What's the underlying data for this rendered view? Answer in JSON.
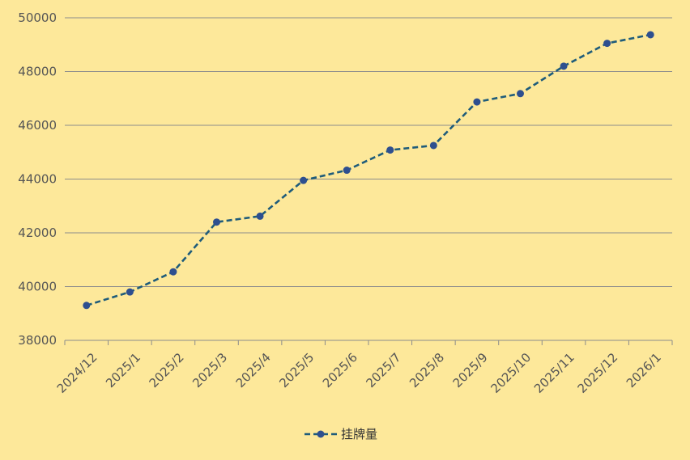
{
  "chart_data": {
    "type": "line",
    "categories": [
      "2024/12",
      "2025/1",
      "2025/2",
      "2025/3",
      "2025/4",
      "2025/5",
      "2025/6",
      "2025/7",
      "2025/8",
      "2025/9",
      "2025/10",
      "2025/11",
      "2025/12",
      "2026/1"
    ],
    "series": [
      {
        "name": "挂牌量",
        "values": [
          39300,
          39800,
          40550,
          42400,
          42620,
          43950,
          44330,
          45080,
          45250,
          46870,
          47180,
          48200,
          49050,
          49370
        ],
        "color": "#1f5c7a",
        "marker_color": "#2e4f8f"
      }
    ],
    "title": "",
    "xlabel": "",
    "ylabel": "",
    "ylim": [
      38000,
      50000
    ],
    "yticks": [
      38000,
      40000,
      42000,
      44000,
      46000,
      48000,
      50000
    ],
    "grid": true,
    "legend_position": "bottom"
  },
  "colors": {
    "background": "#fde89a",
    "grid": "#8c8c8c"
  }
}
